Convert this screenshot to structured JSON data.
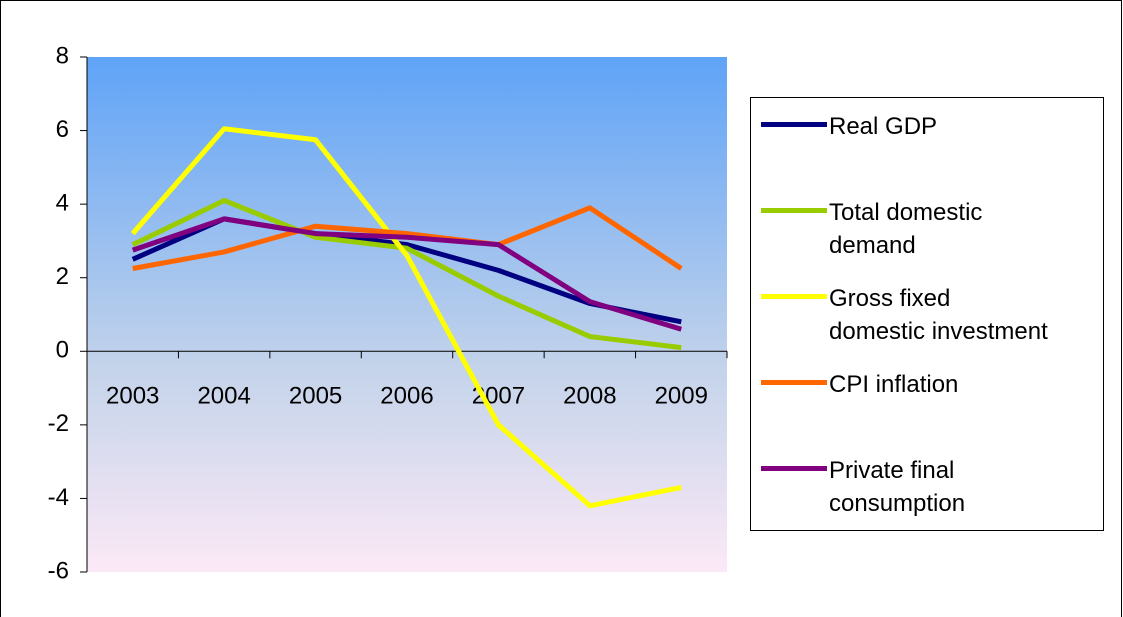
{
  "chart_data": {
    "type": "line",
    "categories": [
      "2003",
      "2004",
      "2005",
      "2006",
      "2007",
      "2008",
      "2009"
    ],
    "series": [
      {
        "name": "Real GDP",
        "color": "#000080",
        "values": [
          2.5,
          3.6,
          3.2,
          2.9,
          2.2,
          1.3,
          0.8
        ]
      },
      {
        "name": "Total domestic demand",
        "color": "#99cc00",
        "values": [
          2.9,
          4.1,
          3.1,
          2.8,
          1.5,
          0.4,
          0.1
        ]
      },
      {
        "name": "Gross fixed domestic investment",
        "color": "#ffff00",
        "values": [
          3.2,
          6.05,
          5.75,
          2.6,
          -2.0,
          -4.2,
          -3.7
        ]
      },
      {
        "name": "CPI inflation",
        "color": "#ff6600",
        "values": [
          2.25,
          2.7,
          3.4,
          3.2,
          2.9,
          3.9,
          2.25
        ]
      },
      {
        "name": "Private final consumption",
        "color": "#800080",
        "values": [
          2.75,
          3.6,
          3.2,
          3.1,
          2.9,
          1.35,
          0.6
        ]
      }
    ],
    "ylim": [
      -6,
      8
    ],
    "yticks": [
      -6,
      -4,
      -2,
      0,
      2,
      4,
      6,
      8
    ],
    "legend": "right"
  }
}
